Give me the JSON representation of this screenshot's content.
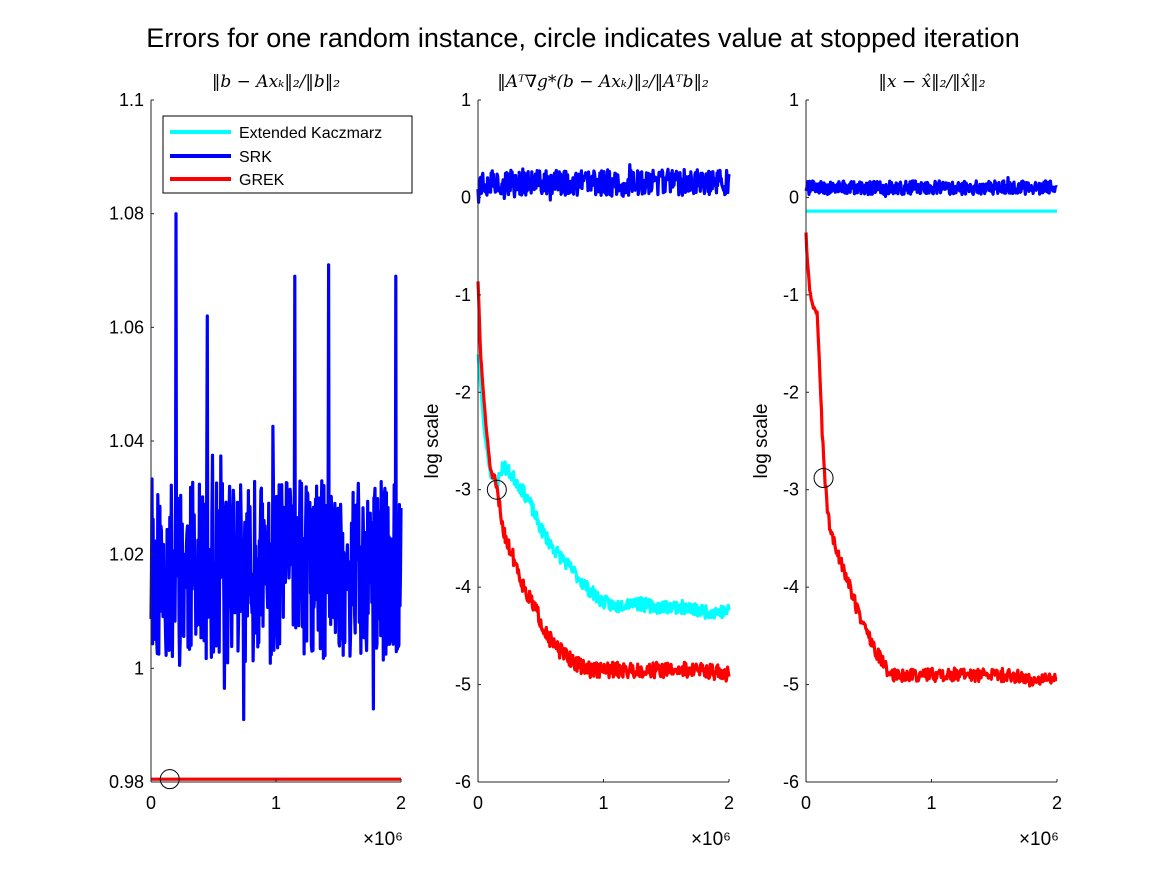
{
  "figure_title": "Errors for one random instance, circle indicates value at stopped iteration",
  "colors": {
    "extended_kaczmarz": "#00ffff",
    "srk": "#0000ff",
    "grek": "#ff0000",
    "marker": "#000000"
  },
  "chart_data": [
    {
      "type": "line",
      "title": "‖b − Axₖ‖₂/‖b‖₂",
      "ylabel": "",
      "xlabel": "",
      "x_multiplier_label": "×10⁶",
      "xlim": [
        0,
        2000000
      ],
      "ylim": [
        0.98,
        1.1
      ],
      "xticks": [
        0,
        1000000,
        2000000
      ],
      "xtick_labels": [
        "0",
        "1",
        "2"
      ],
      "yticks": [
        0.98,
        1,
        1.02,
        1.04,
        1.06,
        1.08,
        1.1
      ],
      "ytick_labels": [
        "0.98",
        "1",
        "1.02",
        "1.04",
        "1.06",
        "1.08",
        "1.1"
      ],
      "grid": false,
      "legend": {
        "placement": "top-left",
        "entries": [
          "Extended Kaczmarz",
          "SRK",
          "GREK"
        ]
      },
      "series": [
        {
          "name": "Extended Kaczmarz",
          "color_key": "extended_kaczmarz",
          "x": [
            0,
            2000000
          ],
          "y": [
            0.9805,
            0.9805
          ]
        },
        {
          "name": "SRK",
          "color_key": "srk",
          "noise": {
            "seed": 11,
            "n": 480,
            "x0": 0,
            "x1": 2000000,
            "center": 1.017,
            "amp": 0.016,
            "spike": 0.012
          },
          "extremes": [
            [
              200000,
              1.08
            ],
            [
              450000,
              1.062
            ],
            [
              740000,
              0.991
            ],
            [
              1150000,
              1.069
            ],
            [
              1420000,
              1.071
            ],
            [
              1960000,
              1.069
            ]
          ]
        },
        {
          "name": "GREK",
          "color_key": "grek",
          "x": [
            0,
            2000000
          ],
          "y": [
            0.9805,
            0.9805
          ]
        }
      ],
      "stop_marker": {
        "x": 150000,
        "y": 0.9805
      }
    },
    {
      "type": "line",
      "title": "‖Aᵀ∇g*(b − Axₖ)‖₂/‖Aᵀb‖₂",
      "ylabel": "log scale",
      "xlabel": "",
      "x_multiplier_label": "×10⁶",
      "xlim": [
        0,
        2000000
      ],
      "ylim": [
        -6,
        1
      ],
      "xticks": [
        0,
        1000000,
        2000000
      ],
      "xtick_labels": [
        "0",
        "1",
        "2"
      ],
      "yticks": [
        -6,
        -5,
        -4,
        -3,
        -2,
        -1,
        0,
        1
      ],
      "ytick_labels": [
        "-6",
        "-5",
        "-4",
        "-3",
        "-2",
        "-1",
        "0",
        "1"
      ],
      "grid": false,
      "series": [
        {
          "name": "Extended Kaczmarz",
          "color_key": "extended_kaczmarz",
          "x": [
            0,
            50000,
            100000,
            150000,
            200000,
            300000,
            400000,
            500000,
            600000,
            700000,
            800000,
            900000,
            1000000,
            1100000,
            1200000,
            1400000,
            1600000,
            1800000,
            2000000
          ],
          "y": [
            -1.6,
            -2.4,
            -2.85,
            -2.95,
            -2.75,
            -2.9,
            -3.1,
            -3.4,
            -3.6,
            -3.75,
            -3.9,
            -4.05,
            -4.15,
            -4.2,
            -4.15,
            -4.2,
            -4.2,
            -4.25,
            -4.25
          ],
          "noise": {
            "seed": 23,
            "n": 360,
            "amp": 0.07
          }
        },
        {
          "name": "SRK",
          "color_key": "srk",
          "noise": {
            "seed": 37,
            "n": 420,
            "x0": 0,
            "x1": 2000000,
            "center": 0.15,
            "amp": 0.13,
            "spike": 0.12
          }
        },
        {
          "name": "GREK",
          "color_key": "grek",
          "x": [
            0,
            20000,
            60000,
            100000,
            150000,
            200000,
            250000,
            300000,
            350000,
            400000,
            450000,
            500000,
            600000,
            700000,
            800000,
            900000,
            1000000,
            1200000,
            1400000,
            1600000,
            1800000,
            2000000
          ],
          "y": [
            -0.85,
            -1.6,
            -2.3,
            -2.8,
            -3.0,
            -3.4,
            -3.6,
            -3.75,
            -3.95,
            -4.1,
            -4.2,
            -4.35,
            -4.6,
            -4.7,
            -4.8,
            -4.85,
            -4.85,
            -4.85,
            -4.85,
            -4.85,
            -4.85,
            -4.9
          ],
          "noise": {
            "seed": 51,
            "n": 360,
            "amp": 0.08
          }
        }
      ],
      "stop_marker": {
        "x": 150000,
        "y": -3.0
      }
    },
    {
      "type": "line",
      "title": "‖x − x̂‖₂/‖x̂‖₂",
      "ylabel": "log scale",
      "xlabel": "",
      "x_multiplier_label": "×10⁶",
      "xlim": [
        0,
        2000000
      ],
      "ylim": [
        -6,
        1
      ],
      "xticks": [
        0,
        1000000,
        2000000
      ],
      "xtick_labels": [
        "0",
        "1",
        "2"
      ],
      "yticks": [
        -6,
        -5,
        -4,
        -3,
        -2,
        -1,
        0,
        1
      ],
      "ytick_labels": [
        "-6",
        "-5",
        "-4",
        "-3",
        "-2",
        "-1",
        "0",
        "1"
      ],
      "grid": false,
      "series": [
        {
          "name": "Extended Kaczmarz",
          "color_key": "extended_kaczmarz",
          "x": [
            0,
            2000000
          ],
          "y": [
            -0.14,
            -0.14
          ]
        },
        {
          "name": "SRK",
          "color_key": "srk",
          "noise": {
            "seed": 71,
            "n": 420,
            "x0": 0,
            "x1": 2000000,
            "center": 0.1,
            "amp": 0.07,
            "spike": 0.06
          }
        },
        {
          "name": "GREK",
          "color_key": "grek",
          "x": [
            0,
            10000,
            30000,
            50000,
            70000,
            90000,
            110000,
            130000,
            150000,
            180000,
            210000,
            250000,
            300000,
            350000,
            400000,
            450000,
            500000,
            550000,
            600000,
            650000,
            700000,
            800000,
            900000,
            1000000,
            1200000,
            1400000,
            1600000,
            1800000,
            2000000
          ],
          "y": [
            -0.35,
            -0.65,
            -0.95,
            -1.1,
            -1.15,
            -1.2,
            -1.8,
            -2.4,
            -2.9,
            -3.3,
            -3.5,
            -3.65,
            -3.8,
            -4.0,
            -4.2,
            -4.35,
            -4.5,
            -4.65,
            -4.75,
            -4.85,
            -4.9,
            -4.9,
            -4.9,
            -4.9,
            -4.9,
            -4.9,
            -4.9,
            -4.95,
            -4.95
          ],
          "noise": {
            "seed": 89,
            "n": 340,
            "amp": 0.07
          }
        }
      ],
      "stop_marker": {
        "x": 140000,
        "y": -2.88
      }
    }
  ]
}
